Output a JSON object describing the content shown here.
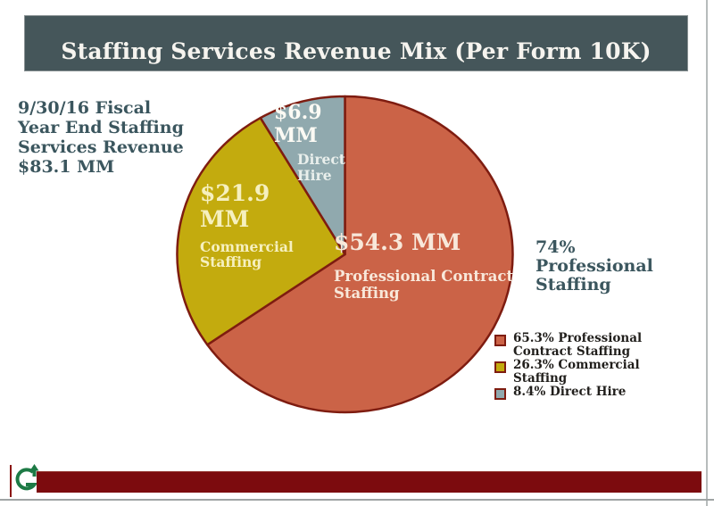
{
  "title_bar": {
    "title": "Staffing Services Revenue Mix (Per Form 10K)"
  },
  "left_note": {
    "lines": [
      "9/30/16 Fiscal",
      "Year End Staffing",
      "Services Revenue",
      "$83.1 MM"
    ]
  },
  "right_note": {
    "lines": [
      "74%",
      "Professional",
      "Staffing"
    ]
  },
  "chart_data": {
    "type": "pie",
    "title": "Staffing Services Revenue Mix (Per Form 10K)",
    "total_revenue_label": "$83.1 MM",
    "fiscal_period": "9/30/16 Fiscal Year End",
    "units": "MM USD",
    "start_angle_deg": 0,
    "direction": "clockwise",
    "slices": [
      {
        "id": "professional-contract-staffing",
        "label": "Professional Contract Staffing",
        "amount_label": "$54.3 MM",
        "value": 54.3,
        "percent": 65.3,
        "color": "#cb6347"
      },
      {
        "id": "commercial-staffing",
        "label": "Commercial Staffing",
        "amount_label": "$21.9 MM",
        "value": 21.9,
        "percent": 26.3,
        "color": "#c3ab0e"
      },
      {
        "id": "direct-hire",
        "label": "Direct Hire",
        "amount_label": "$6.9 MM",
        "value": 6.9,
        "percent": 8.4,
        "color": "#90a9ae"
      }
    ],
    "legend": [
      "65.3% Professional Contract Staffing",
      "26.3% Commercial Staffing",
      "8.4% Direct Hire"
    ],
    "legend_position": "right-bottom",
    "annotation": "74% Professional Staffing"
  },
  "colors": {
    "header_bg": "#45565a",
    "pie_border": "#7e1c10",
    "note_text": "#3b565e",
    "footer_bar": "#7c0b0e",
    "logo_green": "#1d7a45"
  },
  "footer": {
    "logo_letter": "G"
  }
}
